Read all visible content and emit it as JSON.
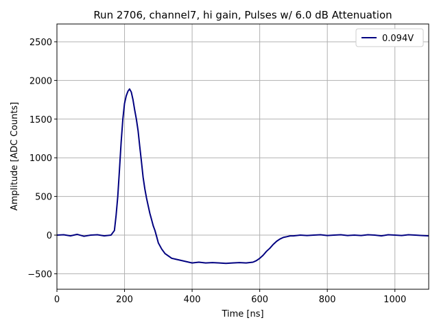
{
  "chart_data": {
    "type": "line",
    "title": "Run 2706, channel7, hi gain, Pulses w/ 6.0 dB Attenuation",
    "xlabel": "Time [ns]",
    "ylabel": "Amplitude [ADC Counts]",
    "xlim": [
      0,
      1100
    ],
    "ylim": [
      -700,
      2730
    ],
    "xticks": [
      0,
      200,
      400,
      600,
      800,
      1000
    ],
    "xtick_labels": [
      "0",
      "200",
      "400",
      "600",
      "800",
      "1000"
    ],
    "yticks": [
      -500,
      0,
      500,
      1000,
      1500,
      2000,
      2500
    ],
    "ytick_labels": [
      "−500",
      "0",
      "500",
      "1000",
      "1500",
      "2000",
      "2500"
    ],
    "grid": true,
    "legend_position": "top-right",
    "series": [
      {
        "name": "0.094V",
        "color": "#000080",
        "x": [
          0,
          20,
          40,
          60,
          80,
          100,
          120,
          140,
          160,
          170,
          175,
          180,
          185,
          190,
          195,
          200,
          205,
          210,
          215,
          220,
          225,
          230,
          235,
          240,
          245,
          250,
          255,
          260,
          265,
          270,
          275,
          280,
          285,
          290,
          295,
          300,
          310,
          320,
          330,
          340,
          360,
          380,
          400,
          420,
          440,
          460,
          480,
          500,
          520,
          540,
          560,
          580,
          590,
          600,
          610,
          620,
          630,
          640,
          650,
          660,
          670,
          680,
          690,
          700,
          720,
          740,
          760,
          780,
          800,
          820,
          840,
          860,
          880,
          900,
          920,
          940,
          960,
          980,
          1000,
          1020,
          1040,
          1060,
          1080,
          1100
        ],
        "y": [
          0,
          5,
          -10,
          10,
          -15,
          0,
          5,
          -10,
          0,
          60,
          250,
          500,
          850,
          1200,
          1500,
          1700,
          1800,
          1860,
          1890,
          1850,
          1750,
          1620,
          1500,
          1350,
          1150,
          950,
          750,
          600,
          480,
          380,
          280,
          200,
          120,
          60,
          -20,
          -100,
          -180,
          -240,
          -270,
          -300,
          -320,
          -340,
          -360,
          -350,
          -360,
          -355,
          -360,
          -365,
          -360,
          -355,
          -360,
          -350,
          -330,
          -300,
          -260,
          -210,
          -170,
          -120,
          -80,
          -50,
          -30,
          -20,
          -10,
          -10,
          0,
          -5,
          0,
          5,
          -5,
          0,
          5,
          -5,
          0,
          -5,
          5,
          0,
          -10,
          5,
          0,
          -5,
          5,
          0,
          -5,
          -10
        ]
      }
    ]
  }
}
